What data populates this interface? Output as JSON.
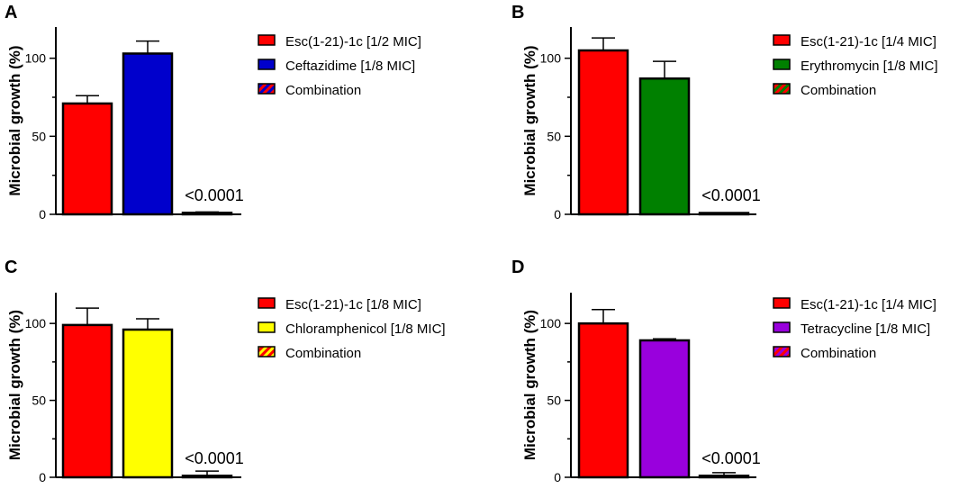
{
  "chart_data": [
    {
      "panel": "A",
      "type": "bar",
      "ylabel": "Microbial growth (%)",
      "ylim": [
        0,
        120
      ],
      "yticks": [
        0,
        50,
        100
      ],
      "series": [
        {
          "name": "Esc(1-21)-1c [1/2 MIC]",
          "value": 71,
          "error": 5,
          "color": "#ff0000",
          "pattern": "solid"
        },
        {
          "name": "Ceftazidime [1/8 MIC]",
          "value": 103,
          "error": 8,
          "color": "#0000cc",
          "pattern": "solid"
        },
        {
          "name": "Combination",
          "value": 1,
          "error": 0.5,
          "color": "#ff0000",
          "color2": "#0000cc",
          "pattern": "stripe"
        }
      ],
      "annotation": "<0.0001"
    },
    {
      "panel": "B",
      "type": "bar",
      "ylabel": "Microbial growth (%)",
      "ylim": [
        0,
        120
      ],
      "yticks": [
        0,
        50,
        100
      ],
      "series": [
        {
          "name": "Esc(1-21)-1c [1/4 MIC]",
          "value": 105,
          "error": 8,
          "color": "#ff0000",
          "pattern": "solid"
        },
        {
          "name": "Erythromycin [1/8 MIC]",
          "value": 87,
          "error": 11,
          "color": "#008000",
          "pattern": "solid"
        },
        {
          "name": "Combination",
          "value": 0,
          "error": 0,
          "color": "#ff0000",
          "color2": "#008000",
          "pattern": "stripe"
        }
      ],
      "annotation": "<0.0001"
    },
    {
      "panel": "C",
      "type": "bar",
      "ylabel": "Microbial growth (%)",
      "ylim": [
        0,
        120
      ],
      "yticks": [
        0,
        50,
        100
      ],
      "series": [
        {
          "name": "Esc(1-21)-1c [1/8 MIC]",
          "value": 99,
          "error": 11,
          "color": "#ff0000",
          "pattern": "solid"
        },
        {
          "name": "Chloramphenicol [1/8 MIC]",
          "value": 96,
          "error": 7,
          "color": "#ffff00",
          "pattern": "solid"
        },
        {
          "name": "Combination",
          "value": 1,
          "error": 3,
          "color": "#ff0000",
          "color2": "#ffff00",
          "pattern": "stripe"
        }
      ],
      "annotation": "<0.0001"
    },
    {
      "panel": "D",
      "type": "bar",
      "ylabel": "Microbial growth (%)",
      "ylim": [
        0,
        120
      ],
      "yticks": [
        0,
        50,
        100
      ],
      "series": [
        {
          "name": "Esc(1-21)-1c [1/4 MIC]",
          "value": 100,
          "error": 9,
          "color": "#ff0000",
          "pattern": "solid"
        },
        {
          "name": "Tetracycline [1/8 MIC]",
          "value": 89,
          "error": 1,
          "color": "#9900dd",
          "pattern": "solid"
        },
        {
          "name": "Combination",
          "value": 1,
          "error": 2,
          "color": "#ff0000",
          "color2": "#9900dd",
          "pattern": "stripe"
        }
      ],
      "annotation": "<0.0001"
    }
  ]
}
